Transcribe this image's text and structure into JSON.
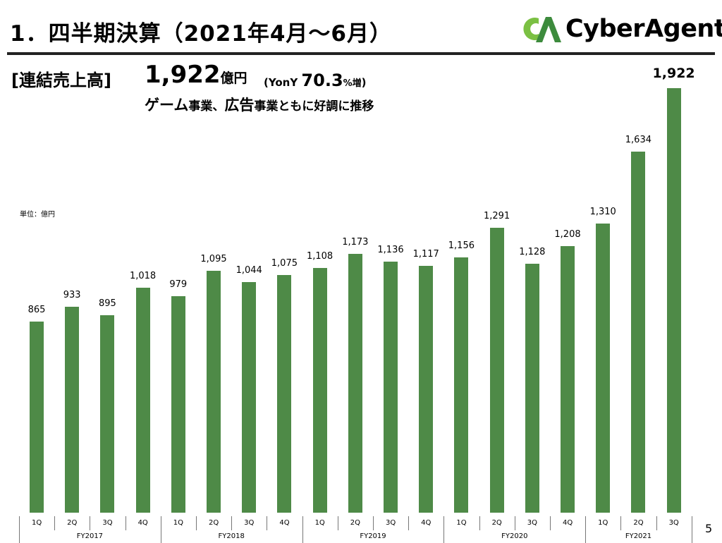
{
  "header": {
    "title": "1．四半期決算（2021年4月～6月）",
    "logo": {
      "text": "CyberAgent",
      "registered": "®",
      "mark_colors": [
        "#7bc043",
        "#3d8b3d"
      ]
    }
  },
  "headline": {
    "label": "[連結売上高]",
    "value": "1,922",
    "value_unit": "億円",
    "yoy_prefix": "(YonY ",
    "yoy_value": "70.3",
    "yoy_suffix_pct": "%増",
    "yoy_close": ")",
    "subhead_parts": [
      "ゲーム",
      "事業、",
      "広告",
      "事業ともに好調に推移"
    ]
  },
  "unit_label": "単位：億円",
  "page_number": "5",
  "colors": {
    "bar": "#4e8a47",
    "rule": "#222222"
  },
  "chart_data": {
    "type": "bar",
    "title": "連結売上高",
    "ylabel": "億円",
    "xlabel": "",
    "ylim": [
      0,
      2000
    ],
    "grid": false,
    "legend": null,
    "categories": [
      "FY2017 1Q",
      "FY2017 2Q",
      "FY2017 3Q",
      "FY2017 4Q",
      "FY2018 1Q",
      "FY2018 2Q",
      "FY2018 3Q",
      "FY2018 4Q",
      "FY2019 1Q",
      "FY2019 2Q",
      "FY2019 3Q",
      "FY2019 4Q",
      "FY2020 1Q",
      "FY2020 2Q",
      "FY2020 3Q",
      "FY2020 4Q",
      "FY2021 1Q",
      "FY2021 2Q",
      "FY2021 3Q"
    ],
    "values": [
      865,
      933,
      895,
      1018,
      979,
      1095,
      1044,
      1075,
      1108,
      1173,
      1136,
      1117,
      1156,
      1291,
      1128,
      1208,
      1310,
      1634,
      1922
    ],
    "value_labels": [
      "865",
      "933",
      "895",
      "1,018",
      "979",
      "1,095",
      "1,044",
      "1,075",
      "1,108",
      "1,173",
      "1,136",
      "1,117",
      "1,156",
      "1,291",
      "1,128",
      "1,208",
      "1,310",
      "1,634",
      "1,922"
    ],
    "quarters": [
      "1Q",
      "2Q",
      "3Q",
      "4Q",
      "1Q",
      "2Q",
      "3Q",
      "4Q",
      "1Q",
      "2Q",
      "3Q",
      "4Q",
      "1Q",
      "2Q",
      "3Q",
      "4Q",
      "1Q",
      "2Q",
      "3Q"
    ],
    "fiscal_years": [
      {
        "label": "FY2017",
        "span": 4
      },
      {
        "label": "FY2018",
        "span": 4
      },
      {
        "label": "FY2019",
        "span": 4
      },
      {
        "label": "FY2020",
        "span": 4
      },
      {
        "label": "FY2021",
        "span": 3
      }
    ],
    "highlight_index": 18
  }
}
